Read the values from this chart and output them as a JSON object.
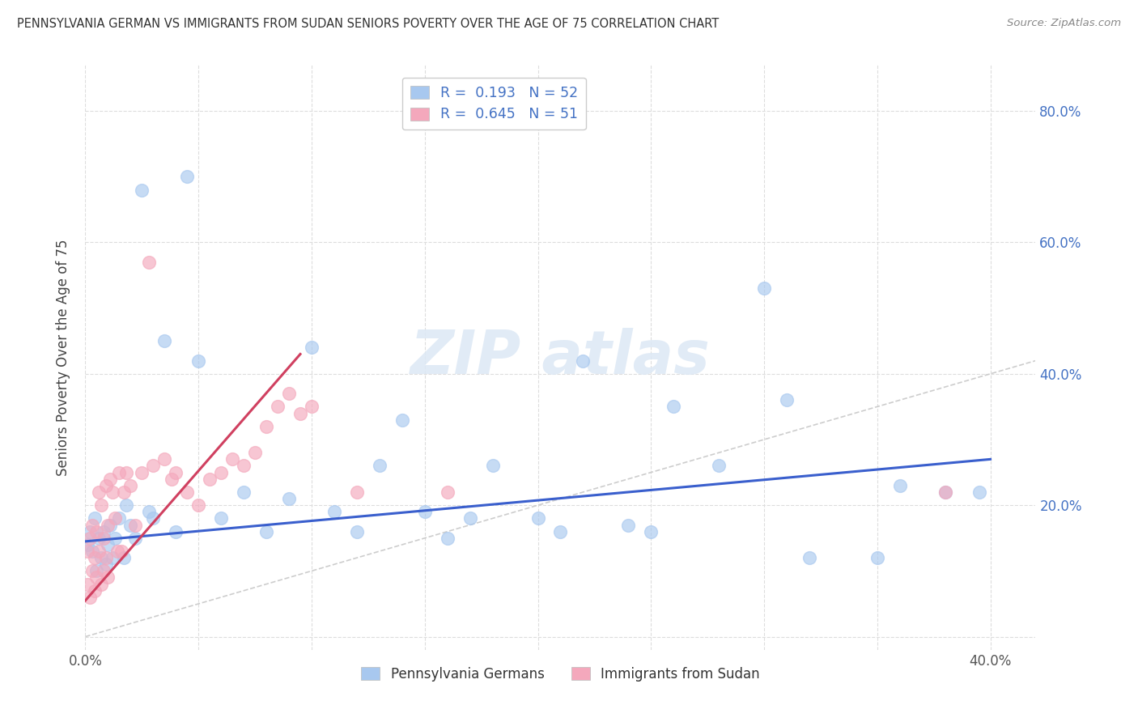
{
  "title": "PENNSYLVANIA GERMAN VS IMMIGRANTS FROM SUDAN SENIORS POVERTY OVER THE AGE OF 75 CORRELATION CHART",
  "source": "Source: ZipAtlas.com",
  "ylabel": "Seniors Poverty Over the Age of 75",
  "xlim": [
    0.0,
    0.42
  ],
  "ylim": [
    -0.02,
    0.87
  ],
  "x_ticks": [
    0.0,
    0.05,
    0.1,
    0.15,
    0.2,
    0.25,
    0.3,
    0.35,
    0.4
  ],
  "y_ticks": [
    0.0,
    0.2,
    0.4,
    0.6,
    0.8
  ],
  "blue_color": "#a8c8ef",
  "pink_color": "#f4a8bc",
  "blue_line_color": "#3a5fcd",
  "pink_line_color": "#d04060",
  "diagonal_color": "#c8c8c8",
  "grid_color": "#dddddd",
  "blue_line_x0": 0.0,
  "blue_line_y0": 0.145,
  "blue_line_x1": 0.4,
  "blue_line_y1": 0.27,
  "pink_line_x0": 0.0,
  "pink_line_x1": 0.095,
  "pink_line_y0": 0.055,
  "pink_line_y1": 0.43,
  "pa_x": [
    0.001,
    0.002,
    0.003,
    0.004,
    0.005,
    0.006,
    0.007,
    0.008,
    0.009,
    0.01,
    0.011,
    0.012,
    0.013,
    0.015,
    0.017,
    0.018,
    0.02,
    0.022,
    0.025,
    0.028,
    0.03,
    0.035,
    0.04,
    0.045,
    0.05,
    0.06,
    0.07,
    0.08,
    0.09,
    0.1,
    0.11,
    0.12,
    0.13,
    0.14,
    0.15,
    0.16,
    0.17,
    0.18,
    0.2,
    0.21,
    0.22,
    0.24,
    0.25,
    0.26,
    0.28,
    0.3,
    0.31,
    0.32,
    0.35,
    0.36,
    0.38,
    0.395
  ],
  "pa_y": [
    0.14,
    0.16,
    0.13,
    0.18,
    0.1,
    0.15,
    0.12,
    0.16,
    0.11,
    0.14,
    0.17,
    0.12,
    0.15,
    0.18,
    0.12,
    0.2,
    0.17,
    0.15,
    0.68,
    0.19,
    0.18,
    0.45,
    0.16,
    0.7,
    0.42,
    0.18,
    0.22,
    0.16,
    0.21,
    0.44,
    0.19,
    0.16,
    0.26,
    0.33,
    0.19,
    0.15,
    0.18,
    0.26,
    0.18,
    0.16,
    0.42,
    0.17,
    0.16,
    0.35,
    0.26,
    0.53,
    0.36,
    0.12,
    0.12,
    0.23,
    0.22,
    0.22
  ],
  "su_x": [
    0.001,
    0.001,
    0.002,
    0.002,
    0.003,
    0.003,
    0.004,
    0.004,
    0.005,
    0.005,
    0.006,
    0.006,
    0.007,
    0.007,
    0.008,
    0.008,
    0.009,
    0.009,
    0.01,
    0.01,
    0.011,
    0.012,
    0.013,
    0.014,
    0.015,
    0.016,
    0.017,
    0.018,
    0.02,
    0.022,
    0.025,
    0.028,
    0.03,
    0.035,
    0.038,
    0.04,
    0.045,
    0.05,
    0.055,
    0.06,
    0.065,
    0.07,
    0.075,
    0.08,
    0.085,
    0.09,
    0.095,
    0.1,
    0.12,
    0.16,
    0.38
  ],
  "su_y": [
    0.13,
    0.08,
    0.15,
    0.06,
    0.17,
    0.1,
    0.12,
    0.07,
    0.16,
    0.09,
    0.22,
    0.13,
    0.2,
    0.08,
    0.15,
    0.1,
    0.23,
    0.12,
    0.17,
    0.09,
    0.24,
    0.22,
    0.18,
    0.13,
    0.25,
    0.13,
    0.22,
    0.25,
    0.23,
    0.17,
    0.25,
    0.57,
    0.26,
    0.27,
    0.24,
    0.25,
    0.22,
    0.2,
    0.24,
    0.25,
    0.27,
    0.26,
    0.28,
    0.32,
    0.35,
    0.37,
    0.34,
    0.35,
    0.22,
    0.22,
    0.22
  ]
}
